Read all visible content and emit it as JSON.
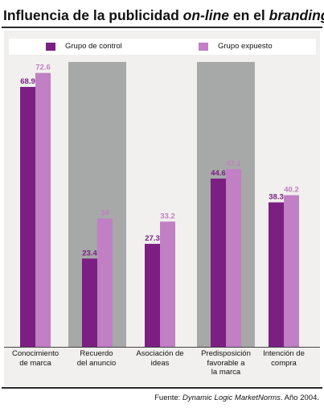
{
  "title": {
    "part1": "Influencia de la publicidad ",
    "part2": "on-line",
    "part3": " en el ",
    "part4": "branding"
  },
  "source": {
    "prefix": "Fuente: ",
    "name": "Dynamic Logic MarketNorms",
    "suffix": ". Año 2004."
  },
  "colors": {
    "control": "#7b1f82",
    "expuesto": "#c17fc4",
    "highlight_band": "#a7a8a8",
    "panel": "#f1f0ee"
  },
  "chart_data": {
    "type": "bar",
    "categories": [
      "Conocimiento\nde marca",
      "Recuerdo\ndel anuncio",
      "Asociación de\nideas",
      "Predisposición\nfavorable a\nla marca",
      "Intención de\ncompra"
    ],
    "highlighted_categories": [
      1,
      3
    ],
    "series": [
      {
        "name": "Grupo de control",
        "values": [
          68.9,
          23.4,
          27.3,
          44.6,
          38.3
        ]
      },
      {
        "name": "Grupo expuesto",
        "values": [
          72.6,
          34,
          33.2,
          47.1,
          40.2
        ]
      }
    ],
    "value_labels": [
      [
        "68.9",
        "23.4",
        "27.3",
        "44.6",
        "38.3"
      ],
      [
        "72.6",
        "34",
        "33.2",
        "47.1",
        "40.2"
      ]
    ],
    "ylim": [
      0,
      80
    ],
    "grid": false,
    "legend": "top"
  }
}
